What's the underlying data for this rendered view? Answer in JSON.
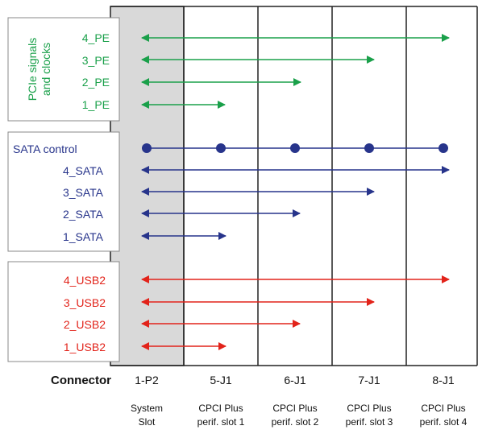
{
  "groups": {
    "pcie": {
      "title_line1": "PCIe signals",
      "title_line2": "and clocks",
      "color": "#1aa04a",
      "signals": [
        {
          "label": "4_PE",
          "to": "8-J1"
        },
        {
          "label": "3_PE",
          "to": "7-J1"
        },
        {
          "label": "2_PE",
          "to": "6-J1"
        },
        {
          "label": "1_PE",
          "to": "5-J1"
        }
      ]
    },
    "sata": {
      "color": "#27348b",
      "bus": {
        "label": "SATA control",
        "drops": [
          "1-P2",
          "5-J1",
          "6-J1",
          "7-J1",
          "8-J1"
        ]
      },
      "signals": [
        {
          "label": "4_SATA",
          "to": "8-J1"
        },
        {
          "label": "3_SATA",
          "to": "7-J1"
        },
        {
          "label": "2_SATA",
          "to": "6-J1"
        },
        {
          "label": "1_SATA",
          "to": "5-J1"
        }
      ]
    },
    "usb": {
      "color": "#e2231a",
      "signals": [
        {
          "label": "4_USB2",
          "to": "8-J1"
        },
        {
          "label": "3_USB2",
          "to": "7-J1"
        },
        {
          "label": "2_USB2",
          "to": "6-J1"
        },
        {
          "label": "1_USB2",
          "to": "5-J1"
        }
      ]
    }
  },
  "connector_header": "Connector",
  "connectors": [
    {
      "id": "1-P2",
      "desc_line1": "System",
      "desc_line2": "Slot"
    },
    {
      "id": "5-J1",
      "desc_line1": "CPCI Plus",
      "desc_line2": "perif. slot 1"
    },
    {
      "id": "6-J1",
      "desc_line1": "CPCI Plus",
      "desc_line2": "perif. slot 2"
    },
    {
      "id": "7-J1",
      "desc_line1": "CPCI Plus",
      "desc_line2": "perif. slot 3"
    },
    {
      "id": "8-J1",
      "desc_line1": "CPCI Plus",
      "desc_line2": "perif. slot 4"
    }
  ],
  "system_slot_fill": "#d9d9d9"
}
